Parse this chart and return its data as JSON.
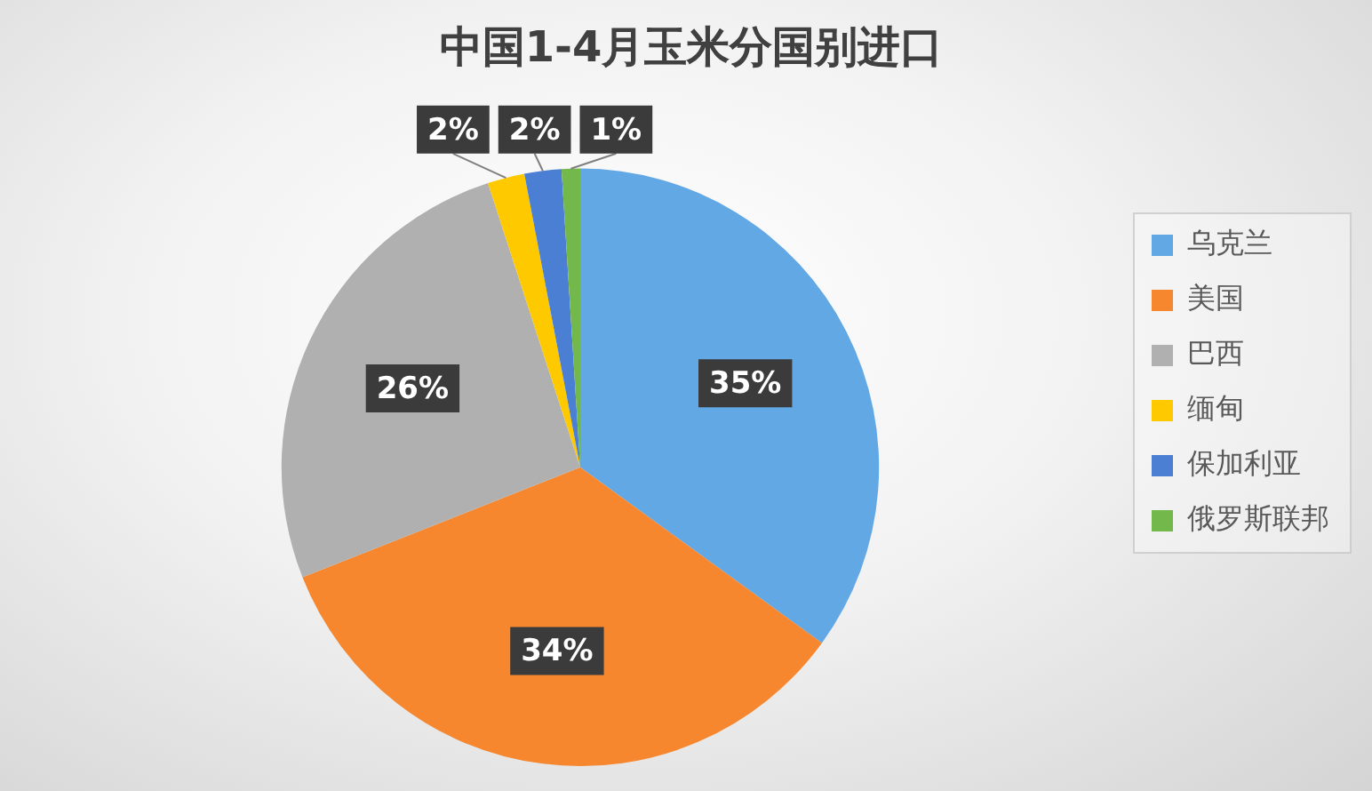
{
  "chart_data": {
    "type": "pie",
    "title": "中国1-4月玉米分国别进口",
    "categories": [
      "乌克兰",
      "美国",
      "巴西",
      "缅甸",
      "保加利亚",
      "俄罗斯联邦"
    ],
    "values": [
      35,
      34,
      26,
      2,
      2,
      1
    ],
    "colors": [
      "#62a8e5",
      "#f6872f",
      "#b0b0b0",
      "#ffc900",
      "#4a7fd4",
      "#72b84a"
    ],
    "value_labels": [
      "35%",
      "34%",
      "26%",
      "2%",
      "2%",
      "1%"
    ],
    "legend": "right"
  }
}
